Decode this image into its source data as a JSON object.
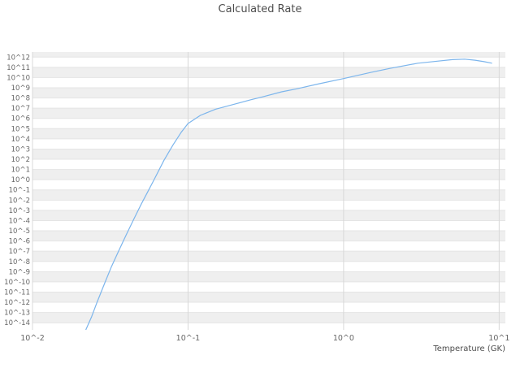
{
  "chart_data": {
    "type": "line",
    "title": "Calculated Rate",
    "xlabel": "Temperature (GK)",
    "ylabel": "",
    "x_scale": "log",
    "y_scale": "log",
    "xlim_log10": [
      -2.0,
      1.04
    ],
    "ylim_log10": [
      -14.7,
      12.5
    ],
    "grid": {
      "on": true,
      "h_line_color": "#e4e4e4",
      "v_line_color": "#d8d8d8",
      "band_colors": [
        "#efefef",
        "#ffffff"
      ]
    },
    "legend": "none",
    "x_ticks": [
      {
        "value": 0.01,
        "label": "10^-2"
      },
      {
        "value": 0.1,
        "label": "10^-1"
      },
      {
        "value": 1.0,
        "label": "10^0"
      },
      {
        "value": 10.0,
        "label": "10^1"
      }
    ],
    "y_ticks": [
      {
        "log10": 12,
        "label": "10^12"
      },
      {
        "log10": 11,
        "label": "10^11"
      },
      {
        "log10": 10,
        "label": "10^10"
      },
      {
        "log10": 9,
        "label": "10^9"
      },
      {
        "log10": 8,
        "label": "10^8"
      },
      {
        "log10": 7,
        "label": "10^7"
      },
      {
        "log10": 6,
        "label": "10^6"
      },
      {
        "log10": 5,
        "label": "10^5"
      },
      {
        "log10": 4,
        "label": "10^4"
      },
      {
        "log10": 3,
        "label": "10^3"
      },
      {
        "log10": 2,
        "label": "10^2"
      },
      {
        "log10": 1,
        "label": "10^1"
      },
      {
        "log10": 0,
        "label": "10^0"
      },
      {
        "log10": -1,
        "label": "10^-1"
      },
      {
        "log10": -2,
        "label": "10^-2"
      },
      {
        "log10": -3,
        "label": "10^-3"
      },
      {
        "log10": -4,
        "label": "10^-4"
      },
      {
        "log10": -5,
        "label": "10^-5"
      },
      {
        "log10": -6,
        "label": "10^-6"
      },
      {
        "log10": -7,
        "label": "10^-7"
      },
      {
        "log10": -8,
        "label": "10^-8"
      },
      {
        "log10": -9,
        "label": "10^-9"
      },
      {
        "log10": -10,
        "label": "10^-10"
      },
      {
        "log10": -11,
        "label": "10^-11"
      },
      {
        "log10": -12,
        "label": "10^-12"
      },
      {
        "log10": -13,
        "label": "10^-13"
      },
      {
        "log10": -14,
        "label": "10^-14"
      }
    ],
    "series": [
      {
        "name": "Calculated Rate",
        "color": "#7cb5ec",
        "x_gk": [
          0.022,
          0.024,
          0.026,
          0.029,
          0.032,
          0.036,
          0.04,
          0.045,
          0.05,
          0.055,
          0.06,
          0.07,
          0.08,
          0.09,
          0.1,
          0.12,
          0.15,
          0.2,
          0.25,
          0.3,
          0.4,
          0.5,
          0.7,
          1.0,
          1.5,
          2.0,
          3.0,
          4.0,
          5.0,
          6.0,
          7.0,
          8.0,
          9.0
        ],
        "log10_y": [
          -14.7,
          -13.4,
          -12.0,
          -10.2,
          -8.6,
          -6.9,
          -5.4,
          -3.8,
          -2.4,
          -1.2,
          -0.1,
          1.9,
          3.4,
          4.6,
          5.5,
          6.3,
          6.9,
          7.4,
          7.8,
          8.1,
          8.6,
          8.9,
          9.4,
          9.9,
          10.5,
          10.9,
          11.4,
          11.6,
          11.75,
          11.8,
          11.7,
          11.55,
          11.4
        ]
      }
    ]
  }
}
